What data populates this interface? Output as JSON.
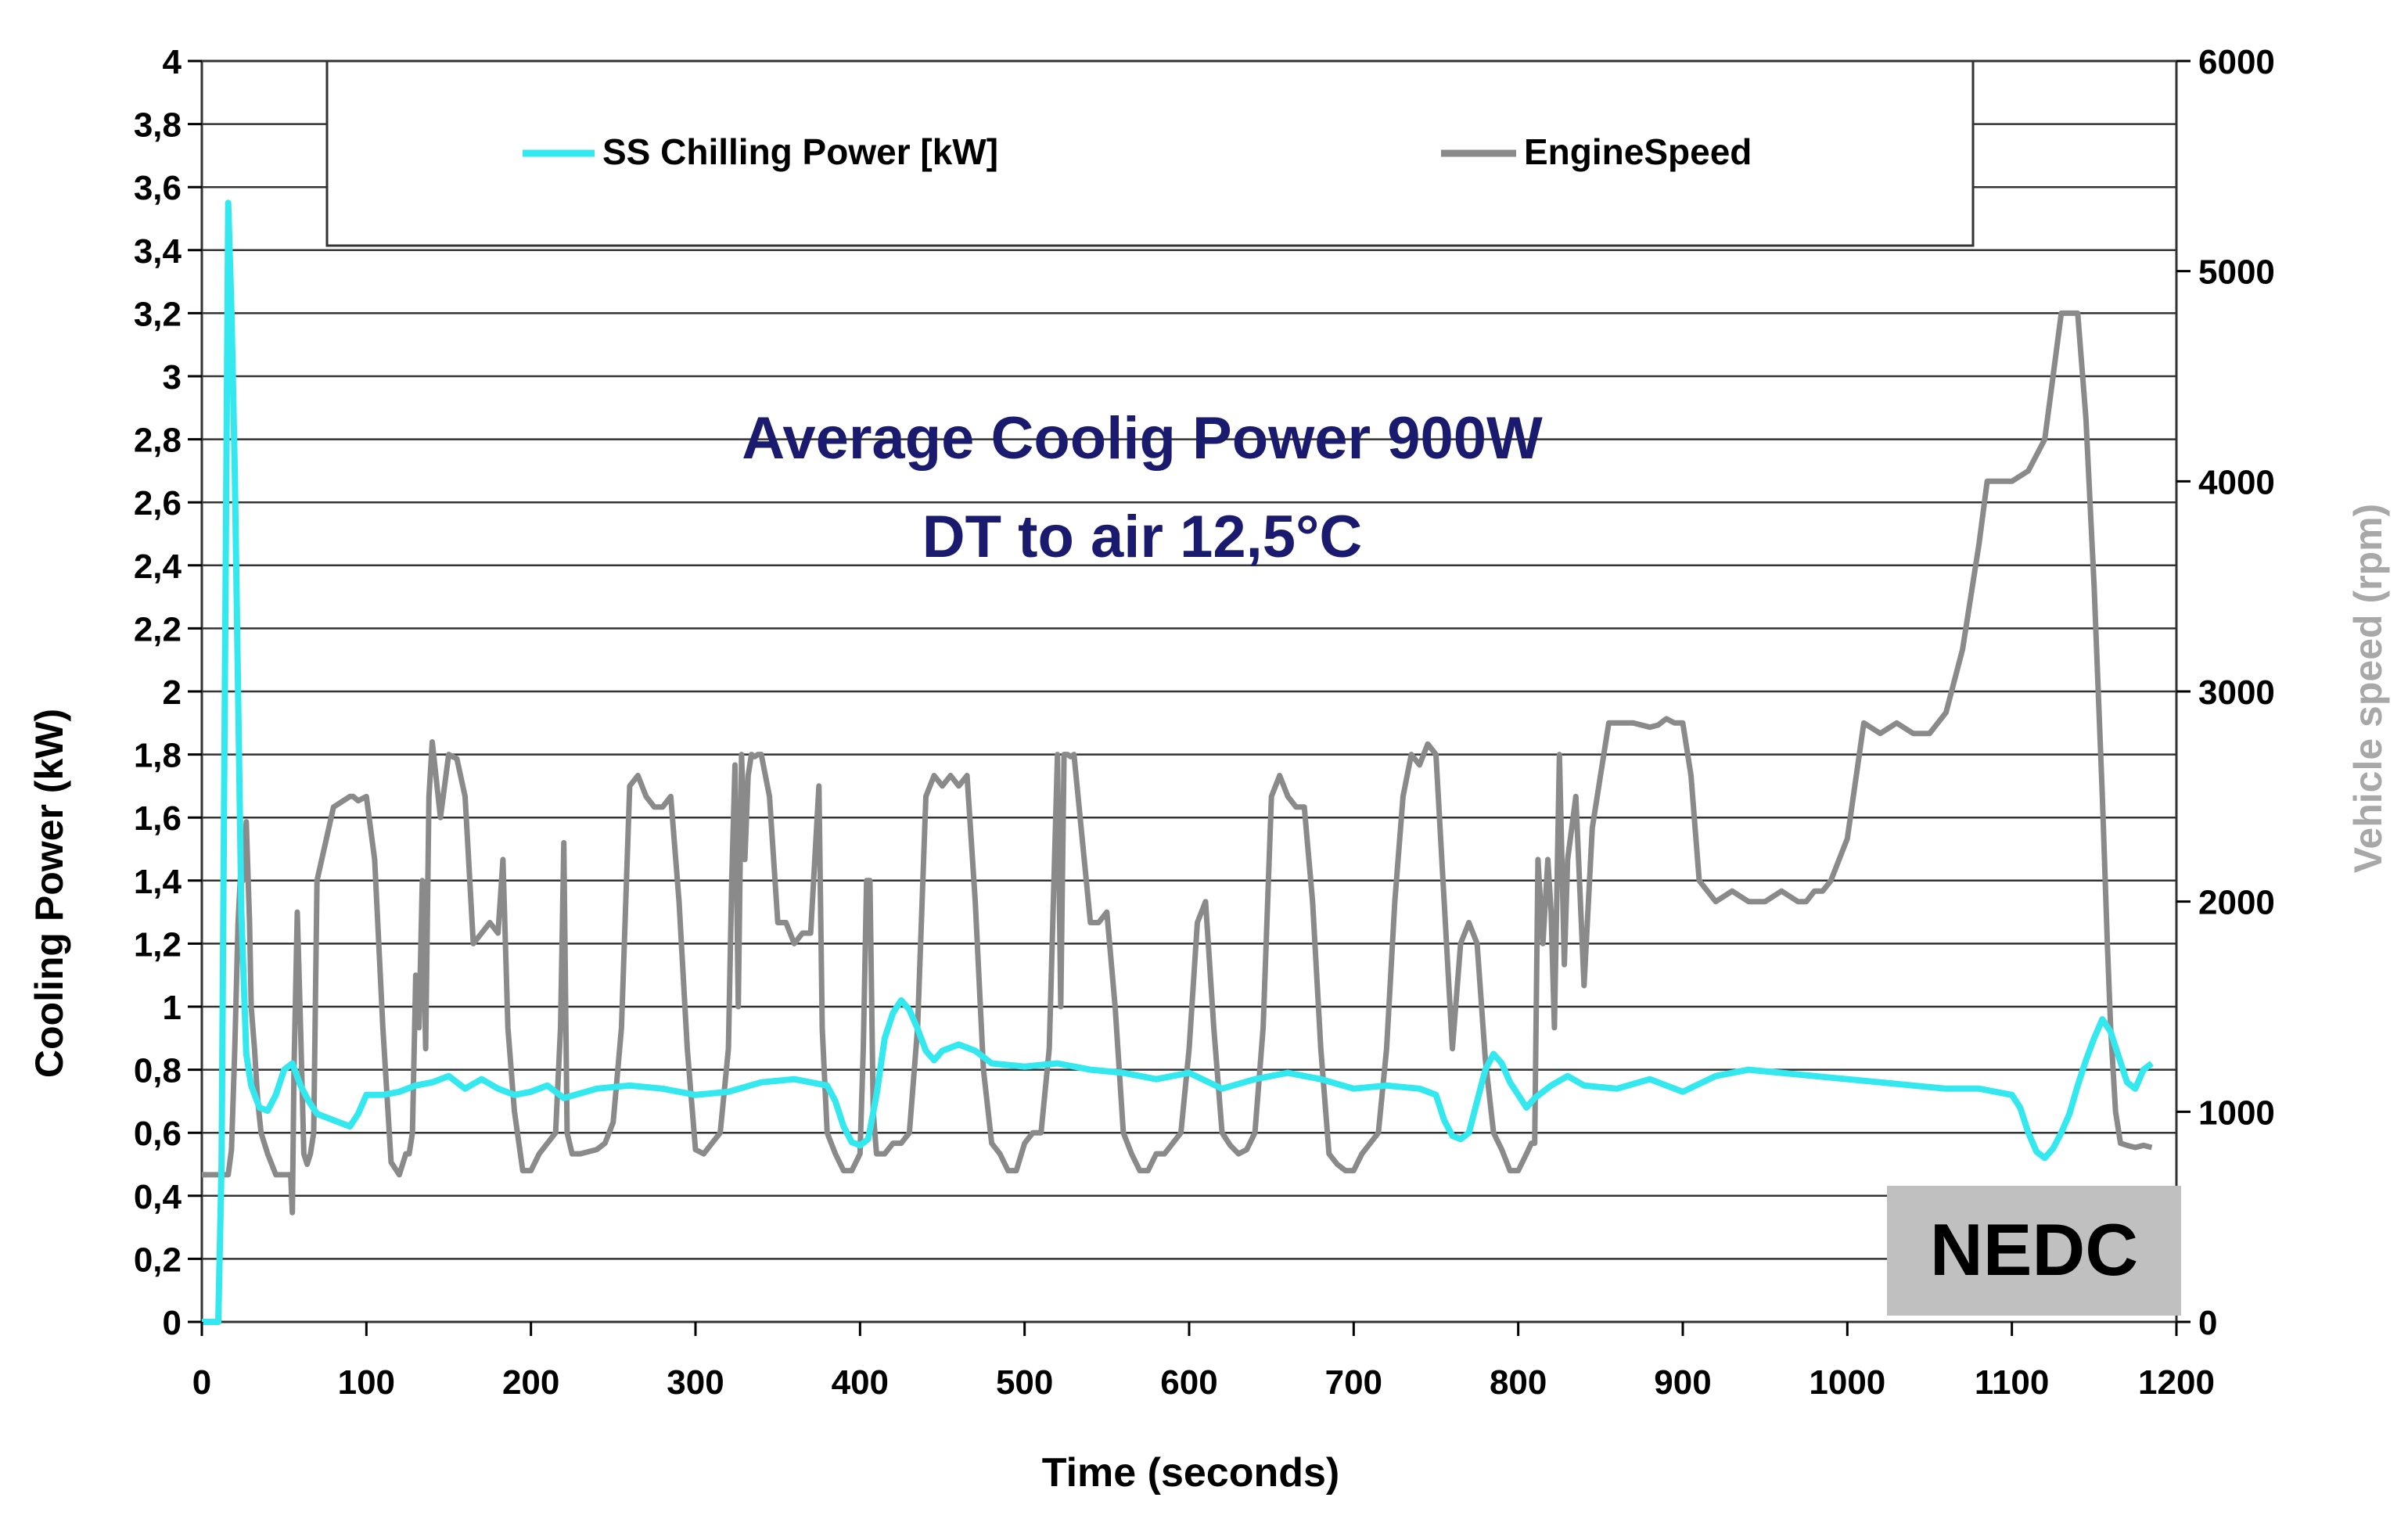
{
  "chart_data": {
    "type": "line",
    "title": "Average Coolig Power 900W",
    "subtitle": "DT to air 12,5°C",
    "badge": "NEDC",
    "xlabel": "Time (seconds)",
    "ylabel": "Cooling Power (kW)",
    "y2label": "Vehicle speed (rpm)",
    "xlim": [
      0,
      1200
    ],
    "ylim": [
      0,
      4
    ],
    "y2lim": [
      0,
      6000
    ],
    "x_ticks": [
      "0",
      "100",
      "200",
      "300",
      "400",
      "500",
      "600",
      "700",
      "800",
      "900",
      "1000",
      "1100",
      "1200"
    ],
    "y_ticks": [
      "0",
      "0,2",
      "0,4",
      "0,6",
      "0,8",
      "1",
      "1,2",
      "1,4",
      "1,6",
      "1,8",
      "2",
      "2,2",
      "2,4",
      "2,6",
      "2,8",
      "3",
      "3,2",
      "3,4",
      "3,6",
      "3,8",
      "4"
    ],
    "y2_ticks": [
      "0",
      "1000",
      "2000",
      "3000",
      "4000",
      "5000",
      "6000"
    ],
    "grid": true,
    "legend": "top",
    "colors": {
      "chilling": "#33e8ee",
      "engine": "#8a8a8a",
      "title": "#1a1a6e",
      "badge_bg": "#c0c0c0",
      "y2label": "#a8a8a8"
    },
    "series": [
      {
        "name": "SS Chilling Power [kW]",
        "axis": "left",
        "x": [
          0,
          10,
          12,
          14,
          16,
          18,
          20,
          22,
          24,
          27,
          30,
          35,
          40,
          45,
          50,
          55,
          60,
          65,
          70,
          80,
          90,
          95,
          100,
          110,
          120,
          130,
          140,
          150,
          160,
          170,
          180,
          190,
          200,
          210,
          220,
          240,
          260,
          280,
          300,
          320,
          340,
          360,
          380,
          385,
          390,
          395,
          400,
          405,
          410,
          415,
          420,
          425,
          430,
          435,
          440,
          445,
          450,
          460,
          470,
          480,
          500,
          520,
          540,
          560,
          580,
          600,
          620,
          640,
          660,
          680,
          700,
          720,
          740,
          750,
          755,
          760,
          765,
          770,
          775,
          780,
          785,
          790,
          795,
          800,
          805,
          810,
          820,
          830,
          840,
          860,
          880,
          900,
          920,
          940,
          960,
          980,
          1000,
          1020,
          1040,
          1060,
          1080,
          1100,
          1105,
          1110,
          1115,
          1120,
          1125,
          1130,
          1135,
          1140,
          1145,
          1150,
          1155,
          1160,
          1165,
          1170,
          1175,
          1180,
          1185
        ],
        "values": [
          0,
          0,
          0.5,
          2.0,
          3.55,
          3.2,
          2.7,
          2.0,
          1.3,
          0.85,
          0.75,
          0.68,
          0.67,
          0.72,
          0.8,
          0.82,
          0.75,
          0.7,
          0.66,
          0.64,
          0.62,
          0.66,
          0.72,
          0.72,
          0.73,
          0.75,
          0.76,
          0.78,
          0.74,
          0.77,
          0.74,
          0.72,
          0.73,
          0.75,
          0.71,
          0.74,
          0.75,
          0.74,
          0.72,
          0.73,
          0.76,
          0.77,
          0.75,
          0.7,
          0.62,
          0.57,
          0.56,
          0.58,
          0.72,
          0.9,
          0.98,
          1.02,
          0.99,
          0.93,
          0.86,
          0.83,
          0.86,
          0.88,
          0.86,
          0.82,
          0.81,
          0.82,
          0.8,
          0.79,
          0.77,
          0.79,
          0.74,
          0.77,
          0.79,
          0.77,
          0.74,
          0.75,
          0.74,
          0.72,
          0.64,
          0.59,
          0.58,
          0.6,
          0.7,
          0.8,
          0.85,
          0.82,
          0.76,
          0.72,
          0.68,
          0.71,
          0.75,
          0.78,
          0.75,
          0.74,
          0.77,
          0.73,
          0.78,
          0.8,
          0.79,
          0.78,
          0.77,
          0.76,
          0.75,
          0.74,
          0.74,
          0.72,
          0.68,
          0.6,
          0.54,
          0.52,
          0.55,
          0.6,
          0.66,
          0.75,
          0.83,
          0.9,
          0.96,
          0.92,
          0.84,
          0.76,
          0.74,
          0.8,
          0.82
        ]
      },
      {
        "name": "EngineSpeed",
        "axis": "right",
        "x": [
          0,
          12,
          14,
          16,
          18,
          20,
          22,
          24,
          25,
          27,
          29,
          30,
          32,
          34,
          36,
          40,
          45,
          50,
          54,
          55,
          56,
          58,
          60,
          62,
          64,
          66,
          68,
          70,
          80,
          90,
          92,
          95,
          100,
          105,
          110,
          115,
          120,
          122,
          124,
          126,
          128,
          130,
          132,
          134,
          136,
          138,
          140,
          145,
          150,
          155,
          160,
          165,
          170,
          175,
          180,
          183,
          186,
          190,
          195,
          200,
          205,
          210,
          215,
          218,
          220,
          222,
          225,
          230,
          240,
          245,
          250,
          255,
          260,
          265,
          270,
          275,
          280,
          285,
          290,
          295,
          300,
          305,
          310,
          315,
          320,
          322,
          324,
          326,
          328,
          330,
          332,
          334,
          336,
          338,
          340,
          345,
          350,
          355,
          360,
          365,
          370,
          375,
          377,
          380,
          385,
          390,
          395,
          400,
          402,
          404,
          406,
          408,
          410,
          415,
          420,
          425,
          430,
          435,
          440,
          445,
          450,
          455,
          460,
          465,
          470,
          475,
          480,
          485,
          490,
          495,
          500,
          505,
          510,
          515,
          520,
          522,
          524,
          526,
          528,
          530,
          535,
          540,
          545,
          550,
          555,
          560,
          565,
          570,
          575,
          580,
          585,
          590,
          595,
          600,
          605,
          610,
          615,
          620,
          625,
          630,
          635,
          640,
          645,
          650,
          655,
          660,
          665,
          670,
          675,
          680,
          685,
          690,
          695,
          700,
          705,
          710,
          715,
          720,
          725,
          730,
          735,
          740,
          745,
          750,
          755,
          760,
          765,
          770,
          775,
          780,
          785,
          790,
          795,
          800,
          805,
          808,
          810,
          812,
          815,
          818,
          820,
          822,
          825,
          828,
          830,
          835,
          840,
          845,
          850,
          855,
          860,
          870,
          880,
          885,
          890,
          895,
          900,
          905,
          910,
          920,
          930,
          940,
          950,
          960,
          970,
          975,
          980,
          985,
          990,
          1000,
          1010,
          1020,
          1030,
          1040,
          1050,
          1060,
          1070,
          1080,
          1085,
          1090,
          1100,
          1110,
          1120,
          1125,
          1130,
          1135,
          1140,
          1145,
          1150,
          1155,
          1158,
          1160,
          1163,
          1166,
          1170,
          1175,
          1180,
          1185
        ],
        "values": [
          700,
          700,
          700,
          700,
          820,
          1300,
          1900,
          2200,
          2100,
          2380,
          1900,
          1500,
          1300,
          1050,
          900,
          800,
          700,
          700,
          700,
          520,
          1200,
          1950,
          1400,
          800,
          750,
          800,
          900,
          2100,
          2450,
          2500,
          2500,
          2480,
          2500,
          2200,
          1400,
          760,
          700,
          750,
          800,
          800,
          900,
          1650,
          1400,
          2100,
          1300,
          2500,
          2760,
          2400,
          2700,
          2680,
          2500,
          1800,
          1850,
          1900,
          1850,
          2200,
          1400,
          1000,
          720,
          720,
          800,
          850,
          900,
          1400,
          2280,
          900,
          800,
          800,
          820,
          850,
          950,
          1400,
          2550,
          2600,
          2500,
          2450,
          2450,
          2500,
          2000,
          1300,
          820,
          800,
          850,
          900,
          1300,
          2100,
          2650,
          1500,
          2700,
          2200,
          2600,
          2700,
          2690,
          2700,
          2700,
          2500,
          1900,
          1900,
          1800,
          1850,
          1850,
          2550,
          1400,
          900,
          800,
          720,
          720,
          800,
          1300,
          2100,
          2100,
          1000,
          800,
          800,
          850,
          850,
          900,
          1400,
          2500,
          2600,
          2550,
          2600,
          2550,
          2600,
          2000,
          1200,
          850,
          800,
          720,
          720,
          850,
          900,
          900,
          1300,
          2700,
          1500,
          2700,
          2700,
          2690,
          2700,
          2300,
          1900,
          1900,
          1950,
          1500,
          900,
          800,
          720,
          720,
          800,
          800,
          850,
          900,
          1300,
          1900,
          2000,
          1400,
          900,
          840,
          800,
          820,
          900,
          1400,
          2500,
          2600,
          2500,
          2450,
          2450,
          2000,
          1300,
          800,
          750,
          720,
          720,
          800,
          850,
          900,
          1300,
          2000,
          2500,
          2700,
          2650,
          2750,
          2700,
          2000,
          1300,
          1800,
          1900,
          1800,
          1250,
          900,
          820,
          720,
          720,
          800,
          850,
          850,
          2200,
          1800,
          2200,
          1950,
          1400,
          2700,
          1700,
          2200,
          2500,
          1600,
          2350,
          2600,
          2850,
          2850,
          2850,
          2830,
          2840,
          2870,
          2850,
          2850,
          2600,
          2100,
          2000,
          2050,
          2000,
          2000,
          2050,
          2000,
          2000,
          2050,
          2050,
          2100,
          2300,
          2850,
          2800,
          2850,
          2800,
          2800,
          2900,
          3200,
          3700,
          4000,
          4000,
          4000,
          4050,
          4200,
          4500,
          4800,
          4800,
          4800,
          4300,
          3500,
          2500,
          1800,
          1400,
          1000,
          850,
          840,
          830,
          840,
          830
        ]
      }
    ]
  }
}
